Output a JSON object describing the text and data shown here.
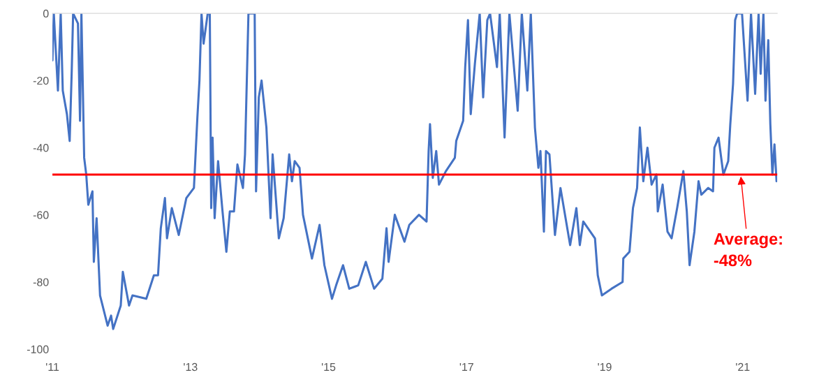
{
  "chart_data": {
    "type": "line",
    "x": [
      2011.0,
      2011.02,
      2011.08,
      2011.12,
      2011.15,
      2011.21,
      2011.25,
      2011.28,
      2011.3,
      2011.37,
      2011.4,
      2011.42,
      2011.46,
      2011.49,
      2011.52,
      2011.58,
      2011.6,
      2011.64,
      2011.69,
      2011.8,
      2011.85,
      2011.88,
      2011.99,
      2012.02,
      2012.11,
      2012.16,
      2012.36,
      2012.47,
      2012.53,
      2012.57,
      2012.63,
      2012.66,
      2012.73,
      2012.83,
      2012.94,
      2013.05,
      2013.1,
      2013.13,
      2013.16,
      2013.19,
      2013.25,
      2013.28,
      2013.3,
      2013.32,
      2013.35,
      2013.4,
      2013.46,
      2013.52,
      2013.57,
      2013.63,
      2013.68,
      2013.76,
      2013.79,
      2013.84,
      2013.93,
      2013.95,
      2013.99,
      2014.03,
      2014.1,
      2014.16,
      2014.19,
      2014.28,
      2014.35,
      2014.43,
      2014.47,
      2014.51,
      2014.58,
      2014.63,
      2014.76,
      2014.87,
      2014.94,
      2015.05,
      2015.11,
      2015.21,
      2015.3,
      2015.43,
      2015.54,
      2015.66,
      2015.78,
      2015.84,
      2015.87,
      2015.96,
      2016.1,
      2016.17,
      2016.31,
      2016.42,
      2016.45,
      2016.47,
      2016.51,
      2016.56,
      2016.6,
      2016.7,
      2016.83,
      2016.85,
      2016.95,
      2016.98,
      2017.02,
      2017.06,
      2017.12,
      2017.19,
      2017.24,
      2017.3,
      2017.34,
      2017.44,
      2017.48,
      2017.55,
      2017.62,
      2017.74,
      2017.8,
      2017.88,
      2017.93,
      2017.99,
      2018.04,
      2018.07,
      2018.12,
      2018.15,
      2018.2,
      2018.28,
      2018.36,
      2018.5,
      2018.59,
      2018.64,
      2018.69,
      2018.86,
      2018.9,
      2018.96,
      2019.1,
      2019.26,
      2019.27,
      2019.36,
      2019.41,
      2019.47,
      2019.51,
      2019.56,
      2019.62,
      2019.68,
      2019.75,
      2019.77,
      2019.84,
      2019.91,
      2019.97,
      2020.05,
      2020.14,
      2020.19,
      2020.23,
      2020.3,
      2020.36,
      2020.4,
      2020.5,
      2020.57,
      2020.59,
      2020.65,
      2020.72,
      2020.79,
      2020.82,
      2020.86,
      2020.89,
      2020.92,
      2020.99,
      2021.07,
      2021.12,
      2021.18,
      2021.23,
      2021.26,
      2021.3,
      2021.33,
      2021.37,
      2021.4,
      2021.43,
      2021.46,
      2021.49
    ],
    "series": [
      {
        "color": "#4472c4",
        "values": [
          -14,
          0,
          -23,
          0,
          -23,
          -30,
          -38,
          -17,
          0,
          -3,
          -32,
          0,
          -43,
          -48,
          -57,
          -53,
          -74,
          -61,
          -84,
          -93,
          -90,
          -94,
          -87,
          -77,
          -87,
          -84,
          -85,
          -78,
          -78,
          -64,
          -55,
          -67,
          -58,
          -66,
          -55,
          -52,
          -31,
          -20,
          0,
          -9,
          0,
          0,
          -58,
          -37,
          -61,
          -44,
          -58,
          -71,
          -59,
          -59,
          -45,
          -52,
          -42,
          0,
          0,
          -53,
          -25,
          -20,
          -34,
          -61,
          -42,
          -67,
          -61,
          -42,
          -50,
          -44,
          -46,
          -60,
          -73,
          -63,
          -75,
          -85,
          -81,
          -75,
          -82,
          -81,
          -74,
          -82,
          -79,
          -64,
          -74,
          -60,
          -68,
          -63,
          -60,
          -62,
          -41,
          -33,
          -49,
          -41,
          -51,
          -47,
          -43,
          -38,
          -32,
          -16,
          -2,
          -30,
          -15,
          0,
          -25,
          -2,
          0,
          -16,
          0,
          -37,
          0,
          -29,
          0,
          -23,
          0,
          -34,
          -46,
          -41,
          -65,
          -41,
          -42,
          -66,
          -52,
          -69,
          -58,
          -69,
          -62,
          -67,
          -78,
          -84,
          -82,
          -80,
          -73,
          -71,
          -58,
          -52,
          -34,
          -50,
          -40,
          -51,
          -48,
          -59,
          -51,
          -65,
          -67,
          -58,
          -47,
          -59,
          -75,
          -65,
          -50,
          -54,
          -52,
          -53,
          -40,
          -37,
          -48,
          -44,
          -33,
          -21,
          -2,
          0,
          0,
          -26,
          0,
          -24,
          0,
          -18,
          0,
          -26,
          -8,
          -33,
          -48,
          -39,
          -50
        ]
      }
    ],
    "xlim": [
      2011,
      2021.5
    ],
    "xticks": [
      {
        "value": 2011,
        "label": "'11"
      },
      {
        "value": 2013,
        "label": "'13"
      },
      {
        "value": 2015,
        "label": "'15"
      },
      {
        "value": 2017,
        "label": "'17"
      },
      {
        "value": 2019,
        "label": "'19"
      },
      {
        "value": 2021,
        "label": "'21"
      }
    ],
    "ylim": [
      -100,
      0
    ],
    "yticks": [
      -100,
      -80,
      -60,
      -40,
      -20,
      0
    ],
    "ref_lines": [
      {
        "axis": "y",
        "value": -48,
        "color": "#ff0000"
      }
    ],
    "annotations": [
      {
        "text": "Average:\n-48%",
        "x": 2020.97,
        "y": -48
      }
    ],
    "grid": false,
    "legend": false,
    "line_style": "solid",
    "marker": "none"
  }
}
